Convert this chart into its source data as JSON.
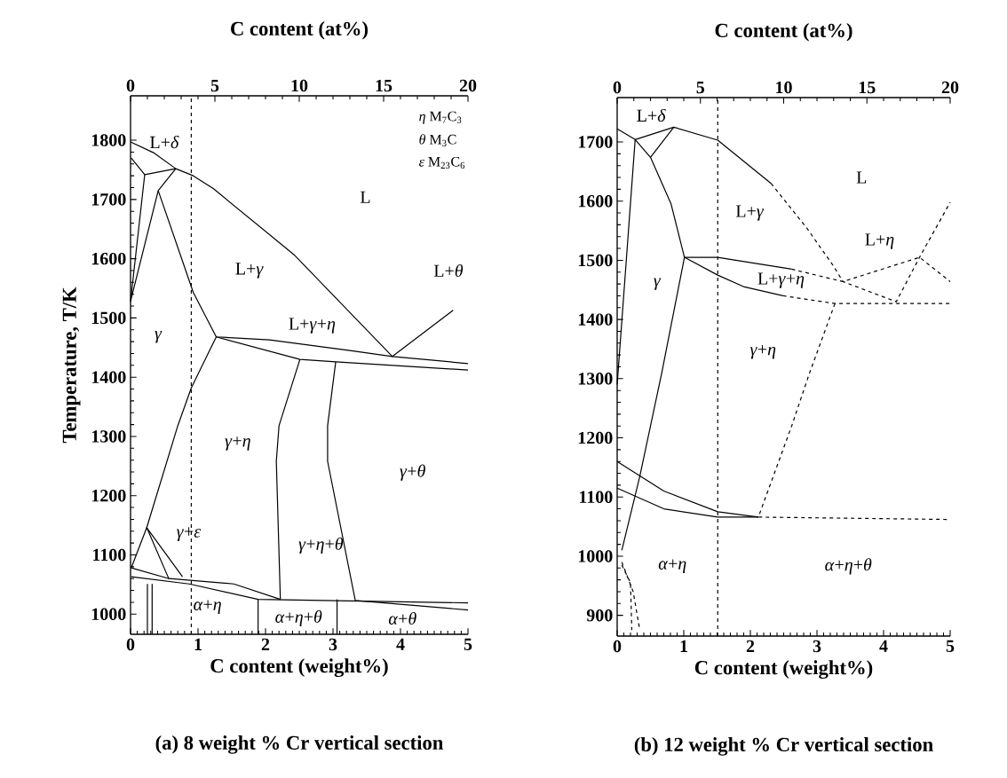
{
  "chart_data": [
    {
      "type": "line",
      "title": "(a) 8 weight % Cr vertical section",
      "xlabel": "C content (weight%)",
      "x2label": "C content (at%)",
      "ylabel": "Temperature, T/K",
      "xlim": [
        0,
        5
      ],
      "xticks": [
        0,
        1,
        2,
        3,
        4,
        5
      ],
      "x2lim": [
        0,
        20
      ],
      "x2ticks": [
        0,
        5,
        10,
        15,
        20
      ],
      "ylim": [
        966,
        1875
      ],
      "yticks": [
        1000,
        1100,
        1200,
        1300,
        1400,
        1500,
        1600,
        1700,
        1800
      ],
      "marker": "none",
      "series": [
        {
          "color": "#000000",
          "x": [
            0,
            0.34,
            0.67,
            0.93,
            1.23,
            2.42,
            3.88,
            4.78
          ],
          "values": [
            1797,
            1779,
            1752,
            1740,
            1718,
            1607,
            1435,
            1513
          ]
        },
        {
          "color": "#000000",
          "x": [
            0.01,
            0.21,
            0.67
          ],
          "values": [
            1770,
            1742,
            1752
          ]
        },
        {
          "color": "#000000",
          "x": [
            0.21,
            0,
            0.41
          ],
          "values": [
            1742,
            1528,
            1715
          ]
        },
        {
          "color": "#000000",
          "x": [
            0.67,
            0.41,
            0.93,
            1.27,
            2.06,
            3.25,
            3.88,
            5.0
          ],
          "values": [
            1752,
            1715,
            1543,
            1468,
            1463,
            1445,
            1435,
            1423
          ]
        },
        {
          "color": "#000000",
          "x": [
            1.27,
            2.51,
            3.04,
            5.0
          ],
          "values": [
            1468,
            1430,
            1426,
            1412
          ]
        },
        {
          "color": "#000000",
          "x": [
            1.27,
            0.9,
            0.7,
            0.24,
            0.77
          ],
          "values": [
            1468,
            1382,
            1318,
            1146,
            1063
          ]
        },
        {
          "color": "#000000",
          "x": [
            2.51,
            2.2,
            2.16,
            2.22
          ],
          "values": [
            1430,
            1318,
            1258,
            1025
          ]
        },
        {
          "color": "#000000",
          "x": [
            3.04,
            2.92,
            2.92,
            3.33,
            5.0
          ],
          "values": [
            1426,
            1318,
            1258,
            1023,
            1007
          ]
        },
        {
          "color": "#000000",
          "x": [
            0.01,
            0.87,
            1.89,
            5.0
          ],
          "values": [
            1063,
            1051,
            1025,
            1019
          ]
        },
        {
          "color": "#000000",
          "x": [
            0.01,
            0.57,
            1.53,
            2.22
          ],
          "values": [
            1078,
            1060,
            1051,
            1025
          ]
        },
        {
          "color": "#000000",
          "x": [
            0.01,
            0.24,
            0.57
          ],
          "values": [
            1078,
            1146,
            1059
          ]
        },
        {
          "color": "#000000",
          "x": [
            1.89,
            1.89
          ],
          "values": [
            1025,
            966
          ]
        },
        {
          "color": "#000000",
          "x": [
            3.06,
            3.06
          ],
          "values": [
            1025,
            966
          ]
        },
        {
          "color": "#000000",
          "x": [
            0.25,
            0.25
          ],
          "values": [
            1051,
            966
          ]
        },
        {
          "color": "#000000",
          "x": [
            0.32,
            0.32
          ],
          "values": [
            1051,
            966
          ]
        }
      ],
      "ref_lines": [
        {
          "axis": "x",
          "value": 0.9,
          "line_style": "dashed"
        }
      ],
      "annotations": [
        "L+*δ*",
        "L",
        "L+*γ*",
        "L+*θ*",
        "*γ*",
        "L+*γ*+*η*",
        "*γ*+*η*",
        "*γ*+*θ*",
        "*γ*+*ε*",
        "*γ*+*η*+*θ*",
        "*α*+*η*",
        "*α*+*η*+*θ*",
        "*α*+*θ*",
        "*η*  M$_{7}$C$_{3}$",
        "*θ*  M$_{3}$C",
        "*ε*  M$_{23}$C$_{6}$"
      ]
    },
    {
      "type": "line",
      "title": "(b) 12 weight % Cr vertical section",
      "xlabel": "C content (weight%)",
      "x2label": "C content (at%)",
      "xlim": [
        0,
        5
      ],
      "xticks": [
        0,
        1,
        2,
        3,
        4,
        5
      ],
      "x2lim": [
        0,
        20
      ],
      "x2ticks": [
        0,
        5,
        10,
        15,
        20
      ],
      "ylim": [
        865,
        1775
      ],
      "yticks": [
        900,
        1000,
        1100,
        1200,
        1300,
        1400,
        1500,
        1600,
        1700
      ],
      "marker": "none",
      "series": [
        {
          "color": "#000000",
          "x": [
            0,
            0.27,
            0.85,
            1.51,
            2.31
          ],
          "values": [
            1722,
            1704,
            1725,
            1703,
            1630
          ]
        },
        {
          "color": "#000000",
          "line_style": "dashed",
          "x": [
            2.31,
            2.85,
            3.25,
            3.39,
            4.19,
            4.54,
            5.0
          ],
          "values": [
            1630,
            1554,
            1490,
            1464,
            1430,
            1505,
            1598
          ]
        },
        {
          "color": "#000000",
          "line_style": "dashed",
          "x": [
            2.62,
            3.39,
            4.54,
            5.0
          ],
          "values": [
            1485,
            1464,
            1505,
            1464
          ]
        },
        {
          "color": "#000000",
          "x": [
            0,
            0.27,
            0.5
          ],
          "values": [
            1290,
            1704,
            1674
          ]
        },
        {
          "color": "#000000",
          "x": [
            0.85,
            0.5,
            0.81,
            1.01,
            0.67,
            0.34,
            0.07
          ],
          "values": [
            1725,
            1674,
            1595,
            1505,
            1310,
            1135,
            1010
          ]
        },
        {
          "color": "#000000",
          "x": [
            1.01,
            1.51,
            2.62
          ],
          "values": [
            1505,
            1505,
            1485
          ]
        },
        {
          "color": "#000000",
          "x": [
            1.01,
            1.51,
            1.91,
            2.49
          ],
          "values": [
            1505,
            1475,
            1455,
            1440
          ]
        },
        {
          "color": "#000000",
          "line_style": "dashed",
          "x": [
            2.49,
            3.27,
            5.0
          ],
          "values": [
            1440,
            1427,
            1427
          ]
        },
        {
          "color": "#000000",
          "line_style": "dashed",
          "x": [
            3.27,
            2.89,
            2.62,
            2.12,
            5.0
          ],
          "values": [
            1427,
            1310,
            1220,
            1066,
            1062
          ]
        },
        {
          "color": "#000000",
          "x": [
            0,
            0.7,
            1.51,
            2.12
          ],
          "values": [
            1115,
            1080,
            1066,
            1066
          ]
        },
        {
          "color": "#000000",
          "x": [
            0,
            0.7,
            1.51,
            2.12
          ],
          "values": [
            1160,
            1110,
            1075,
            1066
          ]
        },
        {
          "color": "#000000",
          "line_style": "dashed",
          "x": [
            0.07,
            0.24,
            0.34
          ],
          "values": [
            990,
            940,
            875
          ]
        },
        {
          "color": "#000000",
          "line_style": "dashed",
          "x": [
            0.07,
            0.2,
            0.22
          ],
          "values": [
            985,
            955,
            875
          ]
        }
      ],
      "ref_lines": [
        {
          "axis": "x",
          "value": 1.51,
          "line_style": "dashed"
        }
      ],
      "annotations": [
        "L+*δ*",
        "L",
        "L+*γ*",
        "L+*η*",
        "L+*γ*+*η*",
        "*γ*",
        "*γ*+*η*",
        "*α*+*η*",
        "*α*+*η*+*θ*"
      ]
    }
  ]
}
